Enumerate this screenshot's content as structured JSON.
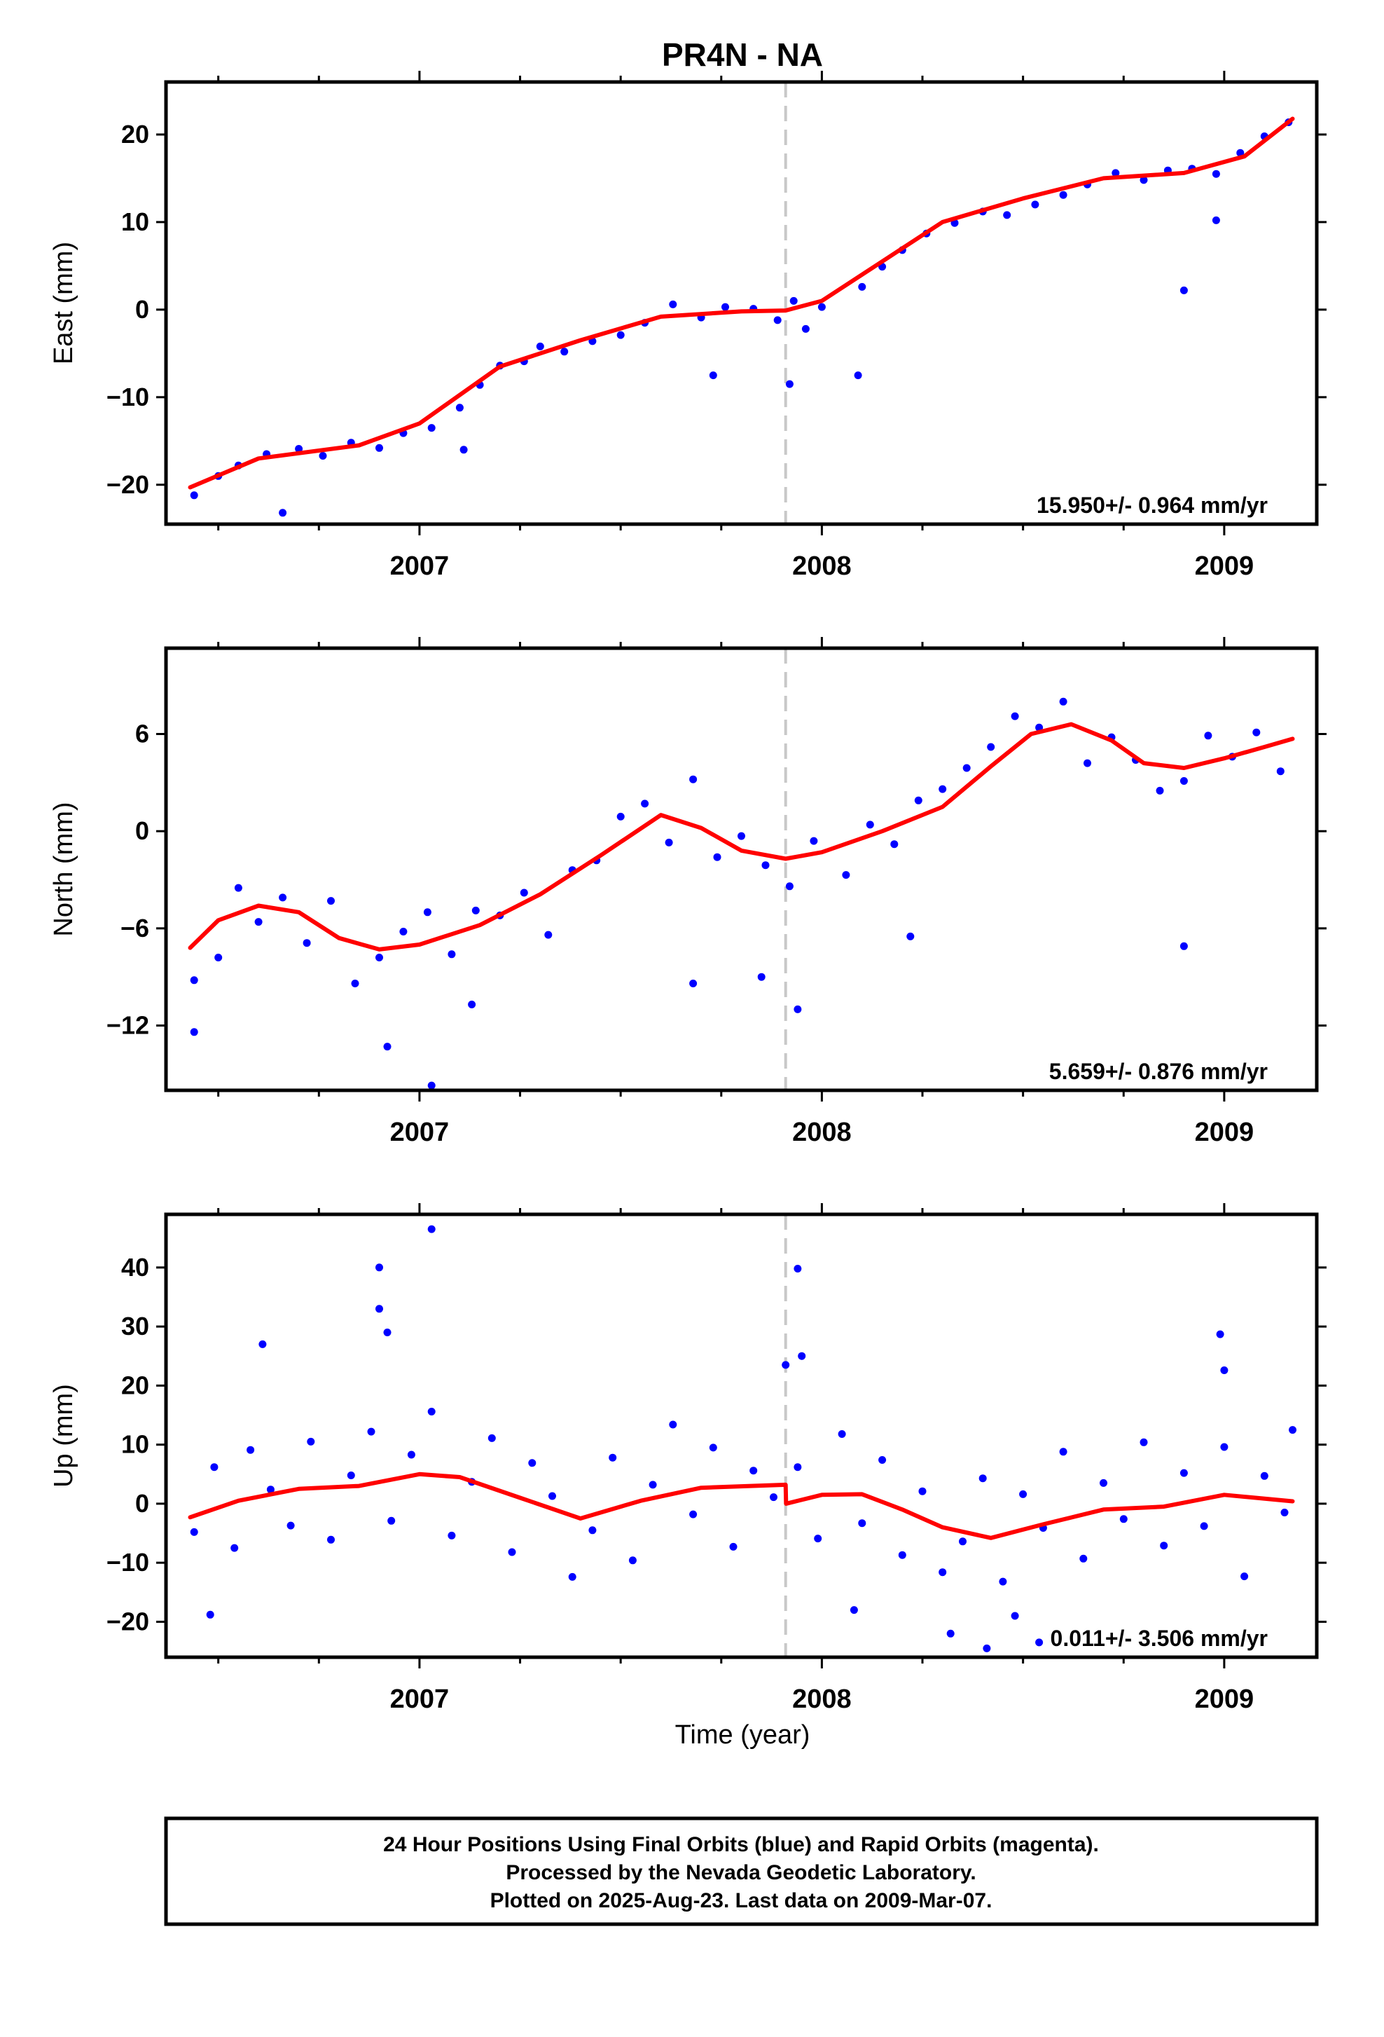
{
  "title": "PR4N - NA",
  "xlabel": "Time (year)",
  "footer_lines": [
    "24 Hour Positions Using Final Orbits (blue) and Rapid Orbits (magenta).",
    "Processed by the Nevada Geodetic Laboratory.",
    "Plotted on 2025-Aug-23. Last data on 2009-Mar-07."
  ],
  "colors": {
    "points": "#0000ff",
    "model": "#ff0000",
    "event_line": "#c8c8c8",
    "axes": "#000000"
  },
  "chart_data": [
    {
      "type": "scatter",
      "component": "East",
      "ylabel": "East (mm)",
      "ylim": [
        -24.5,
        26
      ],
      "yticks": [
        -20,
        -10,
        0,
        10,
        20
      ],
      "xlim": [
        2006.37,
        2009.23
      ],
      "xticks": [
        2007,
        2008,
        2009
      ],
      "event_line_x": 2007.91,
      "rate_label": "15.950+/- 0.964 mm/yr",
      "model": {
        "x": [
          2006.43,
          2006.6,
          2006.85,
          2007.0,
          2007.2,
          2007.4,
          2007.6,
          2007.8,
          2007.91,
          2008.0,
          2008.15,
          2008.3,
          2008.5,
          2008.7,
          2008.9,
          2009.05,
          2009.17
        ],
        "y": [
          -20.3,
          -17.0,
          -15.5,
          -13.0,
          -6.5,
          -3.5,
          -0.8,
          -0.2,
          -0.1,
          1.0,
          5.5,
          10.0,
          12.7,
          15.0,
          15.6,
          17.5,
          21.8
        ]
      },
      "series": [
        {
          "name": "Final Orbits (blue)",
          "x": [
            2006.44,
            2006.5,
            2006.55,
            2006.62,
            2006.7,
            2006.76,
            2006.83,
            2006.9,
            2006.96,
            2007.03,
            2007.1,
            2007.15,
            2007.2,
            2007.26,
            2007.3,
            2007.36,
            2007.43,
            2007.5,
            2007.56,
            2007.63,
            2007.7,
            2007.76,
            2007.83,
            2007.89,
            2007.93,
            2007.96,
            2008.0,
            2008.1,
            2008.15,
            2008.2,
            2008.26,
            2008.33,
            2008.4,
            2008.46,
            2008.53,
            2008.6,
            2008.66,
            2008.73,
            2008.8,
            2008.86,
            2008.92,
            2008.98,
            2009.04,
            2009.1,
            2009.16
          ],
          "y": [
            -21.2,
            -19.0,
            -17.8,
            -16.5,
            -15.9,
            -16.7,
            -15.2,
            -15.8,
            -14.1,
            -13.5,
            -11.2,
            -8.6,
            -6.4,
            -5.9,
            -4.2,
            -4.8,
            -3.6,
            -2.9,
            -1.5,
            0.6,
            -0.9,
            0.3,
            0.1,
            -1.2,
            1.0,
            -2.2,
            0.3,
            2.6,
            4.9,
            6.8,
            8.7,
            9.9,
            11.2,
            10.8,
            12.0,
            13.1,
            14.3,
            15.6,
            14.8,
            15.9,
            16.1,
            15.5,
            17.9,
            19.8,
            21.4
          ]
        },
        {
          "name": "outliers",
          "x": [
            2006.66,
            2007.11,
            2007.73,
            2007.92,
            2008.09,
            2008.9,
            2008.98
          ],
          "y": [
            -23.2,
            -16.0,
            -7.5,
            -8.5,
            -7.5,
            2.2,
            10.2
          ]
        }
      ]
    },
    {
      "type": "scatter",
      "component": "North",
      "ylabel": "North (mm)",
      "ylim": [
        -16,
        11.3
      ],
      "yticks": [
        -12,
        -6,
        0,
        6
      ],
      "xlim": [
        2006.37,
        2009.23
      ],
      "xticks": [
        2007,
        2008,
        2009
      ],
      "event_line_x": 2007.91,
      "rate_label": "5.659+/- 0.876 mm/yr",
      "model": {
        "x": [
          2006.43,
          2006.5,
          2006.6,
          2006.7,
          2006.8,
          2006.9,
          2007.0,
          2007.15,
          2007.3,
          2007.45,
          2007.6,
          2007.7,
          2007.8,
          2007.91,
          2008.0,
          2008.15,
          2008.3,
          2008.42,
          2008.52,
          2008.62,
          2008.72,
          2008.8,
          2008.9,
          2009.0,
          2009.1,
          2009.17
        ],
        "y": [
          -7.2,
          -5.5,
          -4.6,
          -5.0,
          -6.6,
          -7.3,
          -7.0,
          -5.8,
          -3.9,
          -1.5,
          1.0,
          0.2,
          -1.2,
          -1.7,
          -1.3,
          0.0,
          1.5,
          4.0,
          6.0,
          6.6,
          5.6,
          4.2,
          3.9,
          4.5,
          5.2,
          5.7
        ]
      },
      "series": [
        {
          "name": "Final Orbits (blue)",
          "x": [
            2006.44,
            2006.5,
            2006.55,
            2006.6,
            2006.66,
            2006.72,
            2006.78,
            2006.84,
            2006.9,
            2006.96,
            2007.02,
            2007.08,
            2007.14,
            2007.2,
            2007.26,
            2007.32,
            2007.38,
            2007.44,
            2007.5,
            2007.56,
            2007.62,
            2007.68,
            2007.74,
            2007.8,
            2007.86,
            2007.92,
            2007.98,
            2008.06,
            2008.12,
            2008.18,
            2008.24,
            2008.3,
            2008.36,
            2008.42,
            2008.48,
            2008.54,
            2008.6,
            2008.66,
            2008.72,
            2008.78,
            2008.84,
            2008.9,
            2008.96,
            2009.02,
            2009.08,
            2009.14
          ],
          "y": [
            -9.2,
            -7.8,
            -3.5,
            -5.6,
            -4.1,
            -6.9,
            -4.3,
            -9.4,
            -7.8,
            -6.2,
            -5.0,
            -7.6,
            -4.9,
            -5.2,
            -3.8,
            -6.4,
            -2.4,
            -1.8,
            0.9,
            1.7,
            -0.7,
            3.2,
            -1.6,
            -0.3,
            -2.1,
            -3.4,
            -0.6,
            -2.7,
            0.4,
            -0.8,
            1.9,
            2.6,
            3.9,
            5.2,
            7.1,
            6.4,
            8.0,
            4.2,
            5.8,
            4.4,
            2.5,
            3.1,
            5.9,
            4.6,
            6.1,
            3.7
          ]
        },
        {
          "name": "outliers",
          "x": [
            2006.44,
            2006.92,
            2007.03,
            2007.13,
            2007.68,
            2007.85,
            2007.94,
            2008.22,
            2008.9
          ],
          "y": [
            -12.4,
            -13.3,
            -15.7,
            -10.7,
            -9.4,
            -9.0,
            -11.0,
            -6.5,
            -7.1
          ]
        }
      ]
    },
    {
      "type": "scatter",
      "component": "Up",
      "ylabel": "Up (mm)",
      "ylim": [
        -26,
        49
      ],
      "yticks": [
        -20,
        -10,
        0,
        10,
        20,
        30,
        40
      ],
      "xlim": [
        2006.37,
        2009.23
      ],
      "xticks": [
        2007,
        2008,
        2009
      ],
      "event_line_x": 2007.91,
      "rate_label": "0.011+/- 3.506 mm/yr",
      "model": {
        "x": [
          2006.43,
          2006.55,
          2006.7,
          2006.85,
          2007.0,
          2007.1,
          2007.25,
          2007.4,
          2007.55,
          2007.7,
          2007.91,
          2007.911,
          2008.0,
          2008.1,
          2008.2,
          2008.3,
          2008.42,
          2008.55,
          2008.7,
          2008.85,
          2009.0,
          2009.17
        ],
        "y": [
          -2.3,
          0.5,
          2.5,
          3.0,
          5.0,
          4.5,
          1.0,
          -2.5,
          0.5,
          2.7,
          3.2,
          0.0,
          1.5,
          1.6,
          -1.0,
          -4.0,
          -5.8,
          -3.5,
          -1.0,
          -0.5,
          1.5,
          0.4
        ]
      },
      "series": [
        {
          "name": "Final Orbits (blue)",
          "x": [
            2006.44,
            2006.49,
            2006.54,
            2006.58,
            2006.63,
            2006.68,
            2006.73,
            2006.78,
            2006.83,
            2006.88,
            2006.93,
            2006.98,
            2007.03,
            2007.08,
            2007.13,
            2007.18,
            2007.23,
            2007.28,
            2007.33,
            2007.38,
            2007.43,
            2007.48,
            2007.53,
            2007.58,
            2007.63,
            2007.68,
            2007.73,
            2007.78,
            2007.83,
            2007.88,
            2007.94,
            2007.99,
            2008.05,
            2008.1,
            2008.15,
            2008.2,
            2008.25,
            2008.3,
            2008.35,
            2008.4,
            2008.45,
            2008.5,
            2008.55,
            2008.6,
            2008.65,
            2008.7,
            2008.75,
            2008.8,
            2008.85,
            2008.9,
            2008.95,
            2009.0,
            2009.05,
            2009.1,
            2009.15
          ],
          "y": [
            -4.8,
            6.2,
            -7.5,
            9.1,
            2.4,
            -3.7,
            10.5,
            -6.1,
            4.8,
            12.2,
            -2.9,
            8.3,
            15.6,
            -5.4,
            3.7,
            11.1,
            -8.2,
            6.9,
            1.3,
            -12.4,
            -4.5,
            7.8,
            -9.6,
            3.2,
            13.4,
            -1.8,
            9.5,
            -7.3,
            5.6,
            1.1,
            6.2,
            -5.9,
            11.8,
            -3.3,
            7.4,
            -8.7,
            2.1,
            -11.6,
            -6.4,
            4.3,
            -13.2,
            1.6,
            -4.1,
            8.8,
            -9.3,
            3.5,
            -2.6,
            10.4,
            -7.1,
            5.2,
            -3.8,
            9.6,
            -12.3,
            4.7,
            -1.5
          ]
        },
        {
          "name": "outliers",
          "x": [
            2006.48,
            2006.61,
            2006.9,
            2006.9,
            2006.92,
            2007.03,
            2007.91,
            2007.94,
            2007.95,
            2008.08,
            2008.32,
            2008.41,
            2008.48,
            2008.54,
            2008.99,
            2009.0,
            2009.17
          ],
          "y": [
            -18.8,
            27.0,
            40.0,
            33.0,
            29.0,
            46.5,
            23.5,
            39.8,
            25.0,
            -18.0,
            -22.0,
            -24.5,
            -19.0,
            -23.5,
            28.7,
            22.6,
            12.5
          ]
        }
      ]
    }
  ]
}
